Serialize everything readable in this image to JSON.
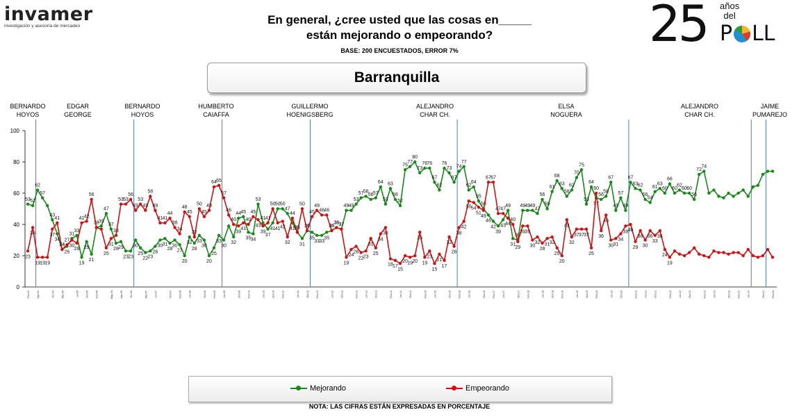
{
  "header": {
    "logo_text": "invamer",
    "logo_tagline": "investigación y asesoría de mercadeo",
    "question_line1": "En general, ¿cree usted que las cosas en_____",
    "question_line2": "están mejorando o empeorando?",
    "base_text": "BASE: 200 ENCUESTADOS, ERROR 7%",
    "city": "Barranquilla",
    "poll_number": "25",
    "poll_anos": "años",
    "poll_del": "del",
    "poll_word_p": "P",
    "poll_word_rest": "LL"
  },
  "legend": {
    "mejorando": "Mejorando",
    "empeorando": "Empeorando"
  },
  "footer": {
    "note": "NOTA: LAS CIFRAS ESTÁN EXPRESADAS EN PORCENTAJE"
  },
  "colors": {
    "mejorando": "#168a16",
    "empeorando": "#d40f0f",
    "divider": "#4a7fb8",
    "axis": "#000000"
  },
  "chart_data": {
    "type": "line",
    "title": "Barranquilla",
    "ylim": [
      0,
      100
    ],
    "yticks": [
      0,
      20,
      40,
      60,
      80,
      100
    ],
    "x_count": 153,
    "x_tick_labels": [
      "Feb-04",
      "Ago-04",
      "Dic-04",
      "Mar-05",
      "Jul-05",
      "Oct-05",
      "Feb-06",
      "May-06",
      "Ago-06",
      "Dic-06",
      "Mar-07",
      "Jun-07",
      "Oct-07",
      "Feb-08",
      "Jun-08",
      "Oct-08",
      "Feb-09",
      "Jun-09",
      "Oct-09",
      "Feb-10",
      "Jun-10",
      "Oct-10",
      "Feb-11",
      "Jun-11",
      "Oct-11",
      "Feb-12",
      "Jun-12",
      "Oct-12",
      "Feb-13",
      "Jun-13",
      "Oct-13",
      "Feb-14",
      "Jun-14",
      "Oct-14",
      "Feb-15",
      "Jun-15",
      "Oct-15",
      "Feb-16",
      "Jun-16",
      "Oct-16",
      "Feb-17",
      "Jun-17",
      "Oct-17",
      "Feb-18",
      "Jun-18",
      "Oct-18",
      "Feb-19",
      "Jun-19",
      "Oct-19",
      "Feb-20",
      "Jun-20",
      "Oct-20",
      "Feb-21",
      "Jun-21",
      "Oct-21",
      "Feb-22",
      "Jun-22",
      "Oct-22",
      "Feb-23",
      "Jun-23",
      "Oct-23",
      "Feb-24",
      "Jun-24",
      "Oct-24",
      "Feb-25"
    ],
    "periods": [
      {
        "label": [
          "BERNARDO",
          "HOYOS"
        ],
        "start": 0,
        "end": 2
      },
      {
        "label": [
          "EDGAR",
          "GEORGE"
        ],
        "start": 2,
        "end": 22
      },
      {
        "label": [
          "BERNARDO",
          "HOYOS"
        ],
        "start": 22,
        "end": 40
      },
      {
        "label": [
          "HUMBERTO",
          "CAIAFFA"
        ],
        "start": 40,
        "end": 58
      },
      {
        "label": [
          "GUILLERMO",
          "HOENIGSBERG"
        ],
        "start": 58,
        "end": 88
      },
      {
        "label": [
          "ALEJANDRO",
          "CHAR CH."
        ],
        "start": 88,
        "end": 123
      },
      {
        "label": [
          "ELSA",
          "NOGUERA"
        ],
        "start": 123,
        "end": 148
      },
      {
        "label": [
          "ALEJANDRO",
          "CHAR CH."
        ],
        "start": 148,
        "end": 151
      },
      {
        "label": [
          "JAIME",
          "PUMAREJO"
        ],
        "start": 151,
        "end": 152
      }
    ],
    "dividers": [
      2,
      22,
      40,
      58,
      88,
      123,
      148,
      151
    ],
    "series": [
      {
        "name": "Mejorando",
        "values": [
          53,
          52,
          62,
          57,
          52,
          43,
          34,
          24,
          26,
          31,
          33,
          19,
          29,
          21,
          38,
          39,
          47,
          37,
          28,
          29,
          23,
          23,
          30,
          25,
          22,
          23,
          26,
          30,
          31,
          28,
          30,
          27,
          20,
          32,
          28,
          33,
          30,
          20,
          25,
          33,
          30,
          39,
          32,
          44,
          45,
          35,
          34,
          53,
          41,
          37,
          41,
          50,
          50,
          47,
          41,
          35,
          31,
          36,
          35,
          33,
          33,
          35,
          36,
          38,
          37,
          49,
          49,
          53,
          57,
          58,
          56,
          57,
          64,
          53,
          63,
          56,
          52,
          75,
          77,
          80,
          73,
          76,
          76,
          67,
          62,
          76,
          73,
          67,
          74,
          77,
          62,
          64,
          55,
          50,
          46,
          42,
          39,
          43,
          49,
          31,
          30,
          49,
          49,
          49,
          47,
          56,
          50,
          61,
          68,
          63,
          58,
          62,
          70,
          75,
          53,
          64,
          57,
          56,
          58,
          67,
          49,
          57,
          49,
          67,
          63,
          62,
          56,
          54,
          61,
          63,
          60,
          66,
          60,
          62,
          60,
          60,
          56,
          72,
          74,
          60,
          62,
          58,
          57,
          60,
          58,
          60,
          62,
          58,
          64,
          65,
          72,
          74,
          74
        ]
      },
      {
        "name": "Empeorando",
        "values": [
          23,
          38,
          19,
          19,
          19,
          37,
          41,
          24,
          27,
          30,
          28,
          41,
          42,
          56,
          38,
          37,
          25,
          31,
          33,
          53,
          53,
          56,
          49,
          53,
          49,
          58,
          49,
          41,
          41,
          44,
          38,
          34,
          48,
          45,
          32,
          50,
          45,
          49,
          64,
          65,
          57,
          46,
          40,
          39,
          41,
          40,
          45,
          43,
          39,
          41,
          50,
          41,
          42,
          32,
          44,
          35,
          50,
          36,
          45,
          49,
          46,
          46,
          36,
          38,
          37,
          19,
          24,
          26,
          22,
          23,
          31,
          25,
          34,
          38,
          18,
          17,
          15,
          20,
          19,
          20,
          35,
          19,
          23,
          15,
          21,
          17,
          32,
          26,
          38,
          42,
          55,
          54,
          51,
          49,
          67,
          67,
          47,
          47,
          44,
          40,
          29,
          39,
          39,
          30,
          32,
          28,
          31,
          32,
          25,
          20,
          43,
          32,
          37,
          37,
          37,
          25,
          60,
          36,
          46,
          30,
          31,
          34,
          39,
          40,
          29,
          36,
          30,
          36,
          33,
          36,
          24,
          19,
          23,
          21,
          20,
          22,
          25,
          21,
          20,
          19,
          23,
          22,
          22,
          21,
          22,
          22,
          20,
          24,
          20,
          19,
          20,
          24,
          19
        ]
      }
    ],
    "labeled_points": {
      "Mejorando": {
        "0": 53,
        "1": 52,
        "2": 62,
        "3": 57,
        "5": 43,
        "6": 34,
        "7": 24,
        "8": 26,
        "9": 31,
        "10": 33,
        "11": 19,
        "12": 29,
        "13": 21,
        "15": 39,
        "16": 47,
        "17": 37,
        "18": 28,
        "19": 29,
        "20": 23,
        "21": 23,
        "22": 30,
        "23": 25,
        "24": 22,
        "25": 23,
        "26": 26,
        "27": 30,
        "28": 31,
        "29": 28,
        "30": 30,
        "31": 27,
        "32": 20,
        "33": 32,
        "34": 28,
        "35": 33,
        "36": 30,
        "37": 20,
        "38": 25,
        "39": 33,
        "40": 30,
        "42": 32,
        "43": 44,
        "44": 45,
        "45": 35,
        "46": 34,
        "47": 53,
        "48": 41,
        "49": 37,
        "50": 41,
        "51": 50,
        "52": 50,
        "53": 47,
        "54": 41,
        "55": 35,
        "56": 31,
        "57": 36,
        "58": 35,
        "59": 33,
        "60": 33,
        "61": 35,
        "62": 36,
        "63": 38,
        "64": 37,
        "65": 49,
        "66": 49,
        "67": 53,
        "68": 57,
        "69": 58,
        "70": 56,
        "71": 57,
        "72": 64,
        "73": 53,
        "74": 63,
        "75": 56,
        "76": 52,
        "77": 75,
        "78": 77,
        "79": 80,
        "80": 73,
        "81": 76,
        "82": 76,
        "83": 67,
        "84": 62,
        "85": 76,
        "86": 73,
        "87": 67,
        "88": 74,
        "89": 77,
        "90": 62,
        "91": 64,
        "92": 55,
        "93": 50,
        "94": 46,
        "95": 42,
        "96": 39,
        "97": 43,
        "98": 49,
        "99": 31,
        "100": 30,
        "101": 49,
        "102": 49,
        "103": 49,
        "104": 47,
        "105": 56,
        "106": 50,
        "107": 61,
        "108": 68,
        "109": 63,
        "110": 58,
        "111": 62,
        "112": 70,
        "113": 75,
        "114": 53,
        "115": 64,
        "116": 57,
        "117": 56,
        "118": 58,
        "119": 67,
        "120": 49,
        "121": 57,
        "122": 49,
        "123": 67,
        "124": 63,
        "125": 62,
        "126": 56,
        "127": 54,
        "128": 61,
        "129": 63,
        "130": 60,
        "131": 66,
        "132": 60,
        "133": 62,
        "134": 60,
        "135": 60,
        "136": 56,
        "137": 72,
        "138": 74
      },
      "Empeorando": {
        "0": 23,
        "1": 38,
        "2": 19,
        "3": 19,
        "4": 19,
        "5": 37,
        "6": 41,
        "7": 24,
        "8": 27,
        "9": 30,
        "10": 28,
        "11": 41,
        "12": 42,
        "13": 56,
        "14": 38,
        "16": 25,
        "17": 31,
        "18": 33,
        "19": 53,
        "20": 53,
        "21": 56,
        "22": 49,
        "23": 53,
        "24": 49,
        "25": 58,
        "26": 49,
        "27": 41,
        "28": 41,
        "29": 44,
        "30": 38,
        "31": 34,
        "32": 48,
        "33": 45,
        "34": 32,
        "35": 50,
        "36": 45,
        "37": 49,
        "38": 64,
        "39": 65,
        "40": 57,
        "41": 46,
        "42": 40,
        "43": 39,
        "44": 41,
        "45": 40,
        "46": 45,
        "47": 43,
        "48": 39,
        "49": 41,
        "50": 50,
        "51": 41,
        "52": 42,
        "53": 32,
        "54": 44,
        "55": 35,
        "56": 50,
        "57": 36,
        "58": 45,
        "59": 49,
        "60": 46,
        "61": 46,
        "62": 36,
        "63": 38,
        "64": 37,
        "65": 19,
        "66": 24,
        "67": 26,
        "68": 22,
        "69": 23,
        "70": 31,
        "71": 25,
        "72": 34,
        "73": 38,
        "74": 18,
        "75": 17,
        "76": 15,
        "77": 20,
        "78": 19,
        "79": 20,
        "80": 35,
        "81": 19,
        "82": 23,
        "83": 15,
        "84": 21,
        "85": 17,
        "86": 32,
        "87": 26,
        "88": 38,
        "89": 42,
        "90": 55,
        "91": 54,
        "92": 51,
        "93": 49,
        "94": 67,
        "95": 67,
        "96": 47,
        "97": 47,
        "98": 44,
        "99": 40,
        "100": 29,
        "101": 39,
        "102": 39,
        "103": 30,
        "104": 32,
        "105": 28,
        "106": 31,
        "107": 32,
        "108": 25,
        "109": 20,
        "110": 43,
        "111": 32,
        "112": 37,
        "113": 37,
        "114": 37,
        "115": 25,
        "116": 60,
        "117": 36,
        "118": 46,
        "119": 30,
        "120": 31,
        "121": 34,
        "122": 39,
        "123": 40,
        "124": 29,
        "125": 36,
        "126": 30,
        "127": 36,
        "128": 33,
        "129": 36,
        "130": 24,
        "131": 19
      }
    },
    "xlabel": "",
    "ylabel": ""
  }
}
